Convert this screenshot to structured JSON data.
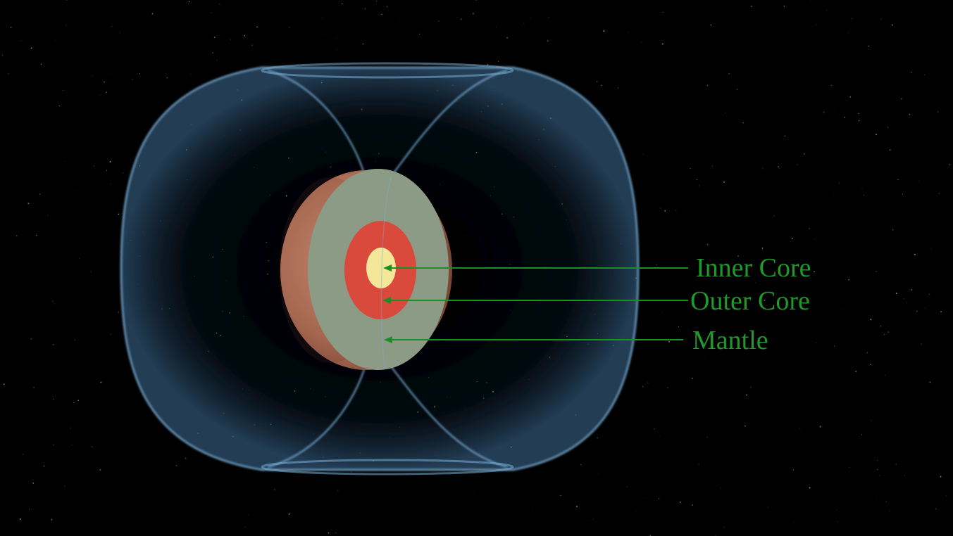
{
  "labels": {
    "inner_core": "Inner Core",
    "outer_core": "Outer Core",
    "mantle": "Mantle"
  },
  "colors": {
    "background": "#000000",
    "label": "#1f9a2a",
    "arrow": "#1a8f24",
    "field": "#7aaed6",
    "mantle": "#8c9b86",
    "outer_core": "#d9493c",
    "inner_core": "#f5e79a",
    "surface": "#b8745a"
  }
}
